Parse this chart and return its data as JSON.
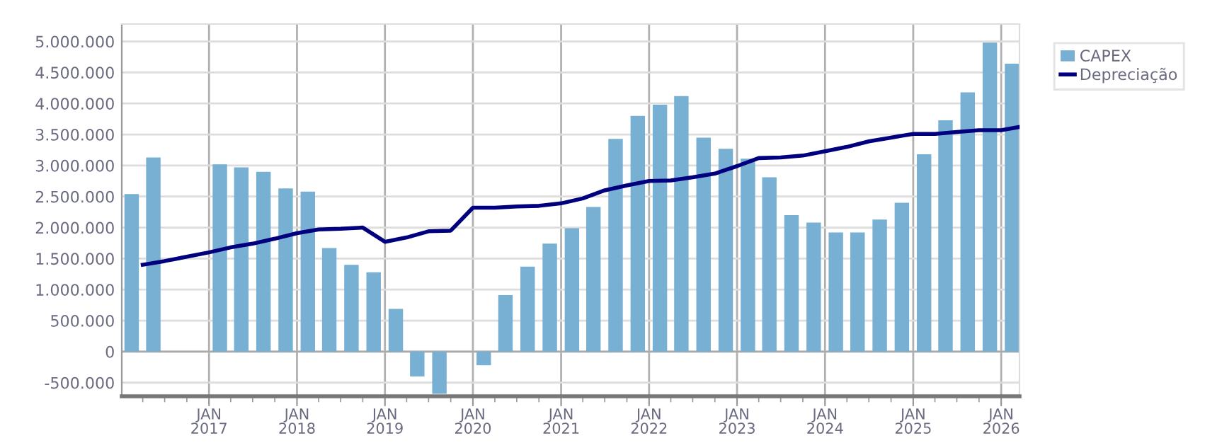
{
  "chart_data": {
    "type": "bar",
    "x": [
      "2016-02-15",
      "2016-05-15",
      "2016-08-15",
      "2016-11-15",
      "2017-02-15",
      "2017-05-15",
      "2017-08-15",
      "2017-11-15",
      "2018-02-15",
      "2018-05-15",
      "2018-08-15",
      "2018-11-15",
      "2019-02-15",
      "2019-05-15",
      "2019-08-15",
      "2019-11-15",
      "2020-02-15",
      "2020-05-15",
      "2020-08-15",
      "2020-11-15",
      "2021-02-15",
      "2021-05-15",
      "2021-08-15",
      "2021-11-15",
      "2022-02-15",
      "2022-05-15",
      "2022-08-15",
      "2022-11-15",
      "2023-02-15",
      "2023-05-15",
      "2023-08-15",
      "2023-11-15",
      "2024-02-15",
      "2024-05-15",
      "2024-08-15",
      "2024-11-15",
      "2025-02-15",
      "2025-05-15",
      "2025-08-15",
      "2025-11-15",
      "2026-02-15"
    ],
    "series": [
      {
        "name": "CAPEX",
        "color": "#77b0d3",
        "values": [
          2540000,
          3130000,
          null,
          null,
          3020000,
          2970000,
          2900000,
          2630000,
          2580000,
          1670000,
          1400000,
          1280000,
          690000,
          -400000,
          -680000,
          null,
          -220000,
          910000,
          1370000,
          1740000,
          1990000,
          2330000,
          3430000,
          3800000,
          3980000,
          4120000,
          3450000,
          3270000,
          3110000,
          2810000,
          2200000,
          2080000,
          1920000,
          1920000,
          2130000,
          2400000,
          3180000,
          3730000,
          4180000,
          4980000,
          4640000
        ]
      },
      {
        "name": "Depreciação",
        "type": "line",
        "color": "#00007f",
        "x": [
          "2016-04-01",
          "2016-07-01",
          "2016-10-01",
          "2017-01-01",
          "2017-04-01",
          "2017-07-01",
          "2017-10-01",
          "2018-01-01",
          "2018-04-01",
          "2018-07-01",
          "2018-10-01",
          "2019-01-01",
          "2019-04-01",
          "2019-07-01",
          "2019-10-01",
          "2020-01-01",
          "2020-04-01",
          "2020-07-01",
          "2020-10-01",
          "2021-01-01",
          "2021-04-01",
          "2021-07-01",
          "2021-10-01",
          "2022-01-01",
          "2022-04-01",
          "2022-07-01",
          "2022-10-01",
          "2023-01-01",
          "2023-04-01",
          "2023-07-01",
          "2023-10-01",
          "2024-01-01",
          "2024-04-01",
          "2024-07-01",
          "2024-10-01",
          "2025-01-01",
          "2025-04-01",
          "2025-07-01",
          "2025-10-01",
          "2026-01-01",
          "2026-03-15"
        ],
        "values": [
          1400000,
          1460000,
          1530000,
          1600000,
          1680000,
          1740000,
          1820000,
          1910000,
          1970000,
          1980000,
          2000000,
          1770000,
          1840000,
          1940000,
          1950000,
          2320000,
          2320000,
          2340000,
          2350000,
          2390000,
          2470000,
          2600000,
          2680000,
          2750000,
          2760000,
          2810000,
          2870000,
          2990000,
          3120000,
          3130000,
          3160000,
          3230000,
          3300000,
          3390000,
          3450000,
          3510000,
          3510000,
          3540000,
          3570000,
          3570000,
          3620000
        ]
      }
    ],
    "xlim": [
      "2016-01-05",
      "2026-03-18"
    ],
    "xticks": [
      {
        "value": "2016-04-01",
        "label": null
      },
      {
        "value": "2016-07-01",
        "label": null
      },
      {
        "value": "2016-10-01",
        "label": null
      },
      {
        "value": "2017-01-01",
        "label": "JAN\n2017"
      },
      {
        "value": "2017-04-01",
        "label": null
      },
      {
        "value": "2017-07-01",
        "label": null
      },
      {
        "value": "2017-10-01",
        "label": null
      },
      {
        "value": "2018-01-01",
        "label": "JAN\n2018"
      },
      {
        "value": "2018-04-01",
        "label": null
      },
      {
        "value": "2018-07-01",
        "label": null
      },
      {
        "value": "2018-10-01",
        "label": null
      },
      {
        "value": "2019-01-01",
        "label": "JAN\n2019"
      },
      {
        "value": "2019-04-01",
        "label": null
      },
      {
        "value": "2019-07-01",
        "label": null
      },
      {
        "value": "2019-10-01",
        "label": null
      },
      {
        "value": "2020-01-01",
        "label": "JAN\n2020"
      },
      {
        "value": "2020-04-01",
        "label": null
      },
      {
        "value": "2020-07-01",
        "label": null
      },
      {
        "value": "2020-10-01",
        "label": null
      },
      {
        "value": "2021-01-01",
        "label": "JAN\n2021"
      },
      {
        "value": "2021-04-01",
        "label": null
      },
      {
        "value": "2021-07-01",
        "label": null
      },
      {
        "value": "2021-10-01",
        "label": null
      },
      {
        "value": "2022-01-01",
        "label": "JAN\n2022"
      },
      {
        "value": "2022-04-01",
        "label": null
      },
      {
        "value": "2022-07-01",
        "label": null
      },
      {
        "value": "2022-10-01",
        "label": null
      },
      {
        "value": "2023-01-01",
        "label": "JAN\n2023"
      },
      {
        "value": "2023-04-01",
        "label": null
      },
      {
        "value": "2023-07-01",
        "label": null
      },
      {
        "value": "2023-10-01",
        "label": null
      },
      {
        "value": "2024-01-01",
        "label": "JAN\n2024"
      },
      {
        "value": "2024-04-01",
        "label": null
      },
      {
        "value": "2024-07-01",
        "label": null
      },
      {
        "value": "2024-10-01",
        "label": null
      },
      {
        "value": "2025-01-01",
        "label": "JAN\n2025"
      },
      {
        "value": "2025-04-01",
        "label": null
      },
      {
        "value": "2025-07-01",
        "label": null
      },
      {
        "value": "2025-10-01",
        "label": null
      },
      {
        "value": "2026-01-01",
        "label": "JAN\n2026"
      }
    ],
    "ylim": [
      -720000,
      5280000
    ],
    "yticks": [
      {
        "value": -500000,
        "label": "-500.000"
      },
      0,
      {
        "value": 500000,
        "label": "500.000"
      },
      {
        "value": 1000000,
        "label": "1.000.000"
      },
      {
        "value": 1500000,
        "label": "1.500.000"
      },
      {
        "value": 2000000,
        "label": "2.000.000"
      },
      {
        "value": 2500000,
        "label": "2.500.000"
      },
      {
        "value": 3000000,
        "label": "3.000.000"
      },
      {
        "value": 3500000,
        "label": "3.500.000"
      },
      {
        "value": 4000000,
        "label": "4.000.000"
      },
      {
        "value": 4500000,
        "label": "4.500.000"
      },
      {
        "value": 5000000,
        "label": "5.000.000"
      }
    ],
    "grid": true,
    "legend": "top right"
  }
}
